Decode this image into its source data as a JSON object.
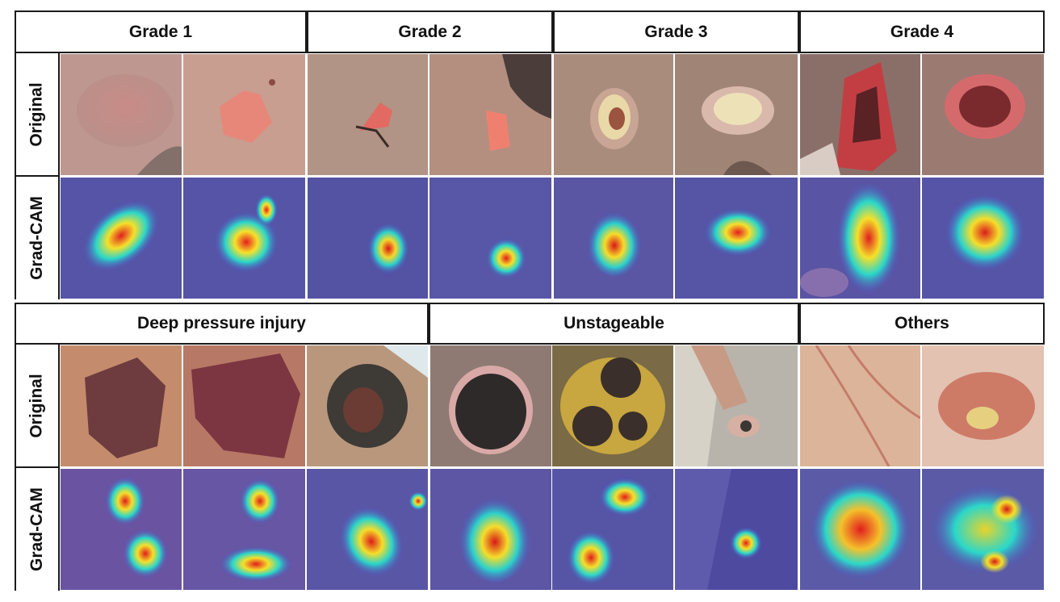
{
  "section1": {
    "headers": [
      "Grade 1",
      "Grade 2",
      "Grade 3",
      "Grade 4"
    ],
    "row_labels": [
      "Original",
      "Grad-CAM"
    ]
  },
  "section2": {
    "headers": [
      "Deep pressure injury",
      "Unstageable",
      "Others"
    ],
    "row_labels": [
      "Original",
      "Grad-CAM"
    ]
  }
}
